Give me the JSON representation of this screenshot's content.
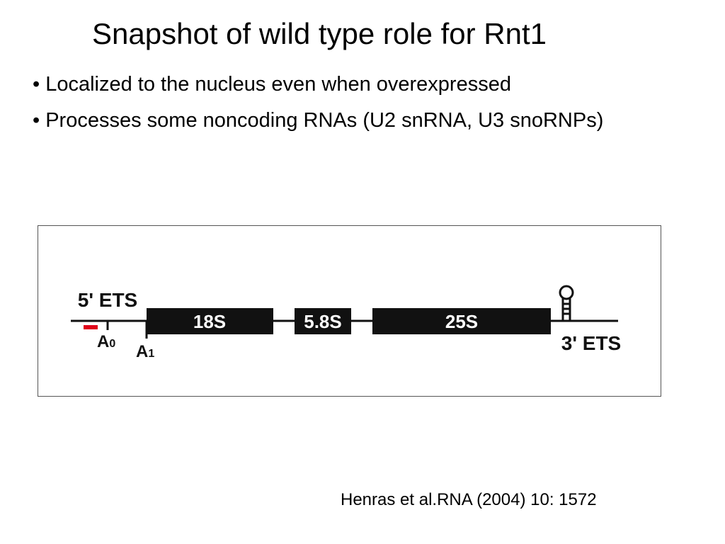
{
  "title": "Snapshot of wild type role for Rnt1",
  "bullets": [
    "Localized to the nucleus even when overexpressed",
    "Processes some noncoding RNAs (U2 snRNA, U3 snoRNPs)"
  ],
  "diagram": {
    "ets5": "5' ETS",
    "ets3": "3' ETS",
    "segments": [
      "18S",
      "5.8S",
      "25S"
    ],
    "sites": [
      {
        "letter": "A",
        "sub": "0"
      },
      {
        "letter": "A",
        "sub": "1"
      }
    ]
  },
  "citation": "Henras et al.RNA (2004) 10: 1572"
}
